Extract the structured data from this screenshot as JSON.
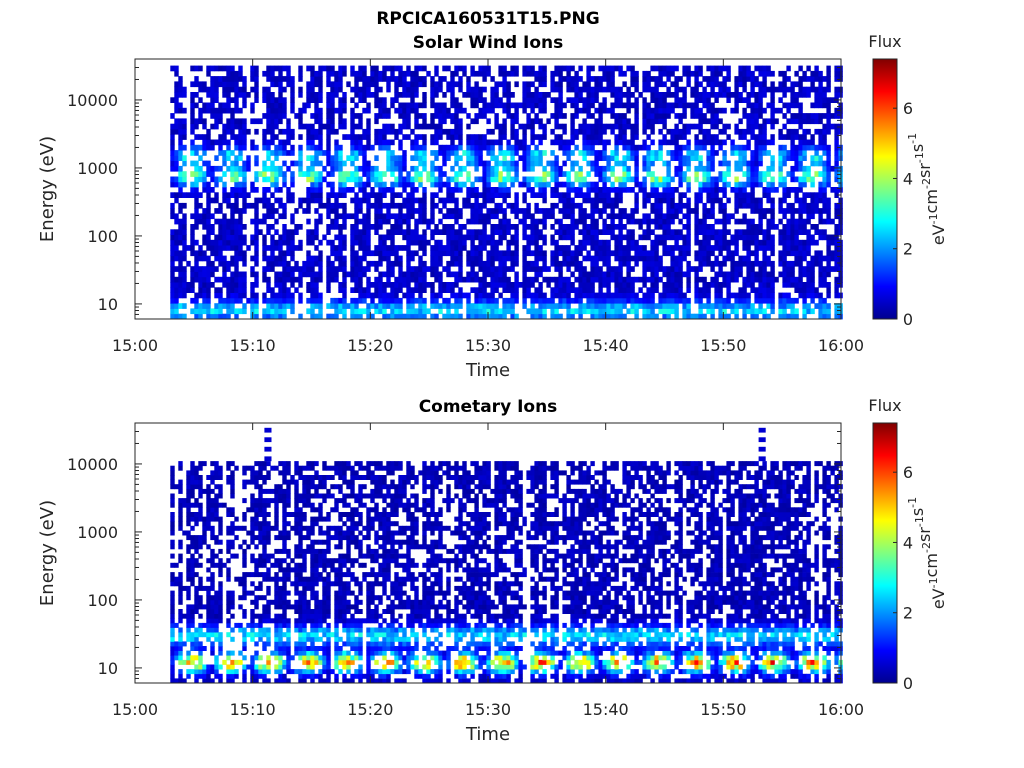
{
  "figure_title": "RPCICA160531T15.PNG",
  "chart_data": [
    {
      "type": "heatmap",
      "title": "Solar Wind Ions",
      "xlabel": "Time",
      "ylabel": "Energy (eV)",
      "x_ticks": [
        "15:00",
        "15:10",
        "15:20",
        "15:30",
        "15:40",
        "15:50",
        "16:00"
      ],
      "xlim": [
        "15:00",
        "16:00"
      ],
      "yscale": "log",
      "y_ticks": [
        10,
        100,
        1000,
        10000
      ],
      "y_tick_labels": [
        "10",
        "100",
        "1000",
        "10000"
      ],
      "ylim": [
        6,
        40000
      ],
      "data_time_range": [
        "15:03",
        "16:00"
      ],
      "data_energy_range": [
        6,
        32000
      ],
      "colorbar": {
        "title": "Flux",
        "label": "eV-1cm-2sr-1s-1",
        "ticks": [
          0,
          2,
          4,
          6
        ],
        "range": [
          0,
          7.4
        ],
        "colormap": "jet"
      },
      "features": [
        {
          "energy_eV": 750,
          "peak_flux": 3.4,
          "repeat_period_min": 3.3,
          "description": "periodic solar wind proton beam"
        },
        {
          "energy_eV": 1500,
          "peak_flux": 2.3,
          "repeat_period_min": 3.3,
          "description": "periodic alpha beam"
        },
        {
          "energy_eV": 8,
          "peak_flux": 2.0,
          "description": "low energy background"
        }
      ],
      "background_flux": 0.5,
      "grid": false,
      "legend": "colorbar-right"
    },
    {
      "type": "heatmap",
      "title": "Cometary Ions",
      "xlabel": "Time",
      "ylabel": "Energy (eV)",
      "x_ticks": [
        "15:00",
        "15:10",
        "15:20",
        "15:30",
        "15:40",
        "15:50",
        "16:00"
      ],
      "xlim": [
        "15:00",
        "16:00"
      ],
      "yscale": "log",
      "y_ticks": [
        10,
        100,
        1000,
        10000
      ],
      "y_tick_labels": [
        "10",
        "100",
        "1000",
        "10000"
      ],
      "ylim": [
        6,
        40000
      ],
      "data_time_range": [
        "15:03",
        "16:00"
      ],
      "data_energy_range": [
        6,
        11000
      ],
      "colorbar": {
        "title": "Flux",
        "label": "eV-1cm-2sr-1s-1",
        "ticks": [
          0,
          2,
          4,
          6
        ],
        "range": [
          0,
          7.4
        ],
        "colormap": "jet"
      },
      "features": [
        {
          "energy_eV": 12,
          "peak_flux": 5.2,
          "repeat_period_min": 3.3,
          "description": "periodic low energy cometary ion band"
        },
        {
          "energy_eV": 30,
          "peak_flux": 2.2,
          "description": "broad cometary ion population"
        }
      ],
      "high_energy_spikes": [
        {
          "time": "15:11",
          "energy_range_eV": [
            11000,
            40000
          ]
        },
        {
          "time": "15:53",
          "energy_range_eV": [
            11000,
            40000
          ]
        }
      ],
      "background_flux": 0.4,
      "grid": false,
      "legend": "colorbar-right"
    }
  ]
}
